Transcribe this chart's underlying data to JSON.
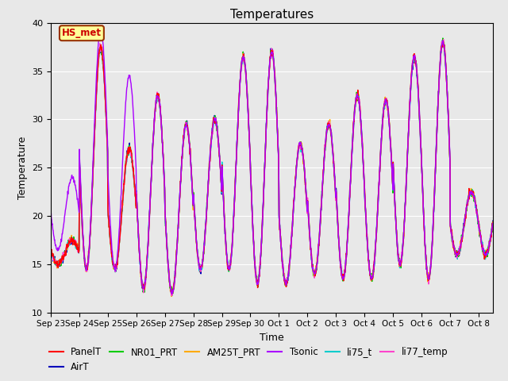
{
  "title": "Temperatures",
  "xlabel": "Time",
  "ylabel": "Temperature",
  "ylim": [
    10,
    40
  ],
  "series_colors": {
    "PanelT": "#ff0000",
    "AirT": "#0000bb",
    "NR01_PRT": "#00cc00",
    "AM25T_PRT": "#ffaa00",
    "Tsonic": "#aa00ff",
    "li75_t": "#00cccc",
    "li77_temp": "#ff44cc"
  },
  "annotation_text": "HS_met",
  "annotation_facecolor": "#ffff99",
  "annotation_edgecolor": "#993300",
  "annotation_textcolor": "#cc0000",
  "bg_color": "#e8e8e8",
  "fig_bg_color": "#e8e8e8",
  "xtick_labels": [
    "Sep 23",
    "Sep 24",
    "Sep 25",
    "Sep 26",
    "Sep 27",
    "Sep 28",
    "Sep 29",
    "Sep 30",
    "Oct 1",
    "Oct 2",
    "Oct 3",
    "Oct 4",
    "Oct 5",
    "Oct 6",
    "Oct 7",
    "Oct 8"
  ],
  "ytick_labels": [
    "10",
    "15",
    "20",
    "25",
    "30",
    "35",
    "40"
  ],
  "ytick_values": [
    10,
    15,
    20,
    25,
    30,
    35,
    40
  ],
  "line_width": 1.0,
  "legend_fontsize": 8.5
}
